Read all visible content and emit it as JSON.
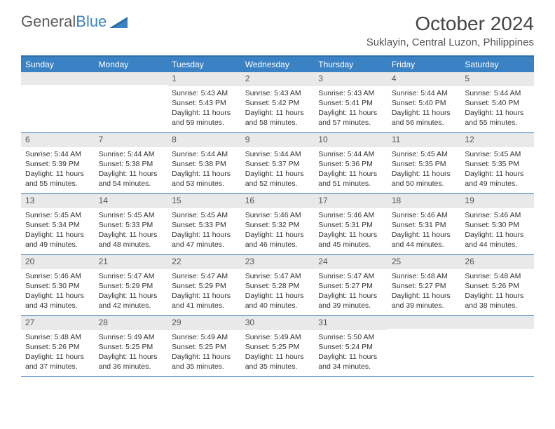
{
  "logo": {
    "word1": "General",
    "word2": "Blue"
  },
  "title": "October 2024",
  "location": "Suklayin, Central Luzon, Philippines",
  "colors": {
    "header_bar": "#3b82c4",
    "border": "#2f6ea8",
    "daynum_bg": "#e9e9e9",
    "text": "#333333",
    "muted": "#555555",
    "white": "#ffffff"
  },
  "weekdays": [
    "Sunday",
    "Monday",
    "Tuesday",
    "Wednesday",
    "Thursday",
    "Friday",
    "Saturday"
  ],
  "weeks": [
    [
      {
        "n": "",
        "sr": "",
        "ss": "",
        "d1": "",
        "d2": ""
      },
      {
        "n": "",
        "sr": "",
        "ss": "",
        "d1": "",
        "d2": ""
      },
      {
        "n": "1",
        "sr": "Sunrise: 5:43 AM",
        "ss": "Sunset: 5:43 PM",
        "d1": "Daylight: 11 hours",
        "d2": "and 59 minutes."
      },
      {
        "n": "2",
        "sr": "Sunrise: 5:43 AM",
        "ss": "Sunset: 5:42 PM",
        "d1": "Daylight: 11 hours",
        "d2": "and 58 minutes."
      },
      {
        "n": "3",
        "sr": "Sunrise: 5:43 AM",
        "ss": "Sunset: 5:41 PM",
        "d1": "Daylight: 11 hours",
        "d2": "and 57 minutes."
      },
      {
        "n": "4",
        "sr": "Sunrise: 5:44 AM",
        "ss": "Sunset: 5:40 PM",
        "d1": "Daylight: 11 hours",
        "d2": "and 56 minutes."
      },
      {
        "n": "5",
        "sr": "Sunrise: 5:44 AM",
        "ss": "Sunset: 5:40 PM",
        "d1": "Daylight: 11 hours",
        "d2": "and 55 minutes."
      }
    ],
    [
      {
        "n": "6",
        "sr": "Sunrise: 5:44 AM",
        "ss": "Sunset: 5:39 PM",
        "d1": "Daylight: 11 hours",
        "d2": "and 55 minutes."
      },
      {
        "n": "7",
        "sr": "Sunrise: 5:44 AM",
        "ss": "Sunset: 5:38 PM",
        "d1": "Daylight: 11 hours",
        "d2": "and 54 minutes."
      },
      {
        "n": "8",
        "sr": "Sunrise: 5:44 AM",
        "ss": "Sunset: 5:38 PM",
        "d1": "Daylight: 11 hours",
        "d2": "and 53 minutes."
      },
      {
        "n": "9",
        "sr": "Sunrise: 5:44 AM",
        "ss": "Sunset: 5:37 PM",
        "d1": "Daylight: 11 hours",
        "d2": "and 52 minutes."
      },
      {
        "n": "10",
        "sr": "Sunrise: 5:44 AM",
        "ss": "Sunset: 5:36 PM",
        "d1": "Daylight: 11 hours",
        "d2": "and 51 minutes."
      },
      {
        "n": "11",
        "sr": "Sunrise: 5:45 AM",
        "ss": "Sunset: 5:35 PM",
        "d1": "Daylight: 11 hours",
        "d2": "and 50 minutes."
      },
      {
        "n": "12",
        "sr": "Sunrise: 5:45 AM",
        "ss": "Sunset: 5:35 PM",
        "d1": "Daylight: 11 hours",
        "d2": "and 49 minutes."
      }
    ],
    [
      {
        "n": "13",
        "sr": "Sunrise: 5:45 AM",
        "ss": "Sunset: 5:34 PM",
        "d1": "Daylight: 11 hours",
        "d2": "and 49 minutes."
      },
      {
        "n": "14",
        "sr": "Sunrise: 5:45 AM",
        "ss": "Sunset: 5:33 PM",
        "d1": "Daylight: 11 hours",
        "d2": "and 48 minutes."
      },
      {
        "n": "15",
        "sr": "Sunrise: 5:45 AM",
        "ss": "Sunset: 5:33 PM",
        "d1": "Daylight: 11 hours",
        "d2": "and 47 minutes."
      },
      {
        "n": "16",
        "sr": "Sunrise: 5:46 AM",
        "ss": "Sunset: 5:32 PM",
        "d1": "Daylight: 11 hours",
        "d2": "and 46 minutes."
      },
      {
        "n": "17",
        "sr": "Sunrise: 5:46 AM",
        "ss": "Sunset: 5:31 PM",
        "d1": "Daylight: 11 hours",
        "d2": "and 45 minutes."
      },
      {
        "n": "18",
        "sr": "Sunrise: 5:46 AM",
        "ss": "Sunset: 5:31 PM",
        "d1": "Daylight: 11 hours",
        "d2": "and 44 minutes."
      },
      {
        "n": "19",
        "sr": "Sunrise: 5:46 AM",
        "ss": "Sunset: 5:30 PM",
        "d1": "Daylight: 11 hours",
        "d2": "and 44 minutes."
      }
    ],
    [
      {
        "n": "20",
        "sr": "Sunrise: 5:46 AM",
        "ss": "Sunset: 5:30 PM",
        "d1": "Daylight: 11 hours",
        "d2": "and 43 minutes."
      },
      {
        "n": "21",
        "sr": "Sunrise: 5:47 AM",
        "ss": "Sunset: 5:29 PM",
        "d1": "Daylight: 11 hours",
        "d2": "and 42 minutes."
      },
      {
        "n": "22",
        "sr": "Sunrise: 5:47 AM",
        "ss": "Sunset: 5:29 PM",
        "d1": "Daylight: 11 hours",
        "d2": "and 41 minutes."
      },
      {
        "n": "23",
        "sr": "Sunrise: 5:47 AM",
        "ss": "Sunset: 5:28 PM",
        "d1": "Daylight: 11 hours",
        "d2": "and 40 minutes."
      },
      {
        "n": "24",
        "sr": "Sunrise: 5:47 AM",
        "ss": "Sunset: 5:27 PM",
        "d1": "Daylight: 11 hours",
        "d2": "and 39 minutes."
      },
      {
        "n": "25",
        "sr": "Sunrise: 5:48 AM",
        "ss": "Sunset: 5:27 PM",
        "d1": "Daylight: 11 hours",
        "d2": "and 39 minutes."
      },
      {
        "n": "26",
        "sr": "Sunrise: 5:48 AM",
        "ss": "Sunset: 5:26 PM",
        "d1": "Daylight: 11 hours",
        "d2": "and 38 minutes."
      }
    ],
    [
      {
        "n": "27",
        "sr": "Sunrise: 5:48 AM",
        "ss": "Sunset: 5:26 PM",
        "d1": "Daylight: 11 hours",
        "d2": "and 37 minutes."
      },
      {
        "n": "28",
        "sr": "Sunrise: 5:49 AM",
        "ss": "Sunset: 5:25 PM",
        "d1": "Daylight: 11 hours",
        "d2": "and 36 minutes."
      },
      {
        "n": "29",
        "sr": "Sunrise: 5:49 AM",
        "ss": "Sunset: 5:25 PM",
        "d1": "Daylight: 11 hours",
        "d2": "and 35 minutes."
      },
      {
        "n": "30",
        "sr": "Sunrise: 5:49 AM",
        "ss": "Sunset: 5:25 PM",
        "d1": "Daylight: 11 hours",
        "d2": "and 35 minutes."
      },
      {
        "n": "31",
        "sr": "Sunrise: 5:50 AM",
        "ss": "Sunset: 5:24 PM",
        "d1": "Daylight: 11 hours",
        "d2": "and 34 minutes."
      },
      {
        "n": "",
        "sr": "",
        "ss": "",
        "d1": "",
        "d2": ""
      },
      {
        "n": "",
        "sr": "",
        "ss": "",
        "d1": "",
        "d2": ""
      }
    ]
  ]
}
